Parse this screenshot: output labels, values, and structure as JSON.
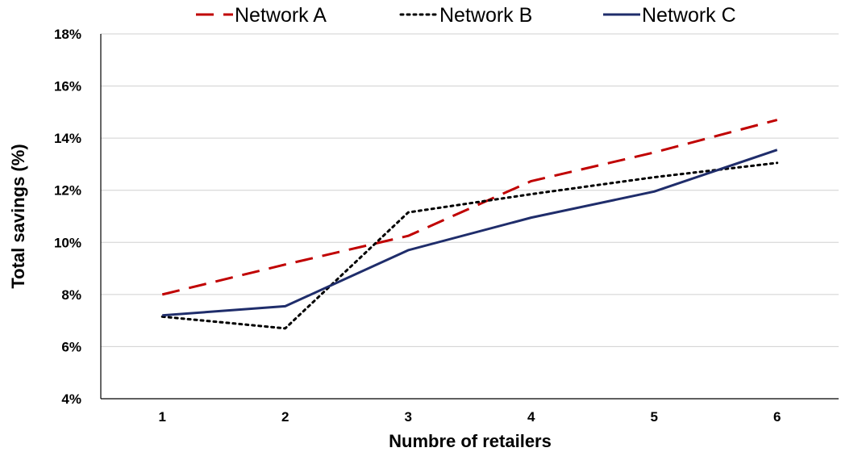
{
  "chart_data": {
    "type": "line",
    "x": [
      1,
      2,
      3,
      4,
      5,
      6
    ],
    "series": [
      {
        "name": "Network A",
        "values": [
          8.0,
          9.15,
          10.25,
          12.35,
          13.45,
          14.7
        ],
        "color": "#c00000",
        "dash": "dashed"
      },
      {
        "name": "Network B",
        "values": [
          7.15,
          6.7,
          11.15,
          11.85,
          12.5,
          13.05
        ],
        "color": "#000000",
        "dash": "dotted"
      },
      {
        "name": "Network C",
        "values": [
          7.2,
          7.55,
          9.7,
          10.95,
          11.95,
          13.55
        ],
        "color": "#1f2d6b",
        "dash": "solid"
      }
    ],
    "xlabel": "Numbre of retailers",
    "ylabel": "Total savings (%)",
    "x_tick_labels": [
      "1",
      "2",
      "3",
      "4",
      "5",
      "6"
    ],
    "y_tick_labels": [
      "4%",
      "6%",
      "8%",
      "10%",
      "12%",
      "14%",
      "16%",
      "18%"
    ],
    "ylim": [
      4,
      18
    ],
    "xlim": [
      0.5,
      6.5
    ],
    "grid": "horizontal",
    "legend_position": "top"
  }
}
